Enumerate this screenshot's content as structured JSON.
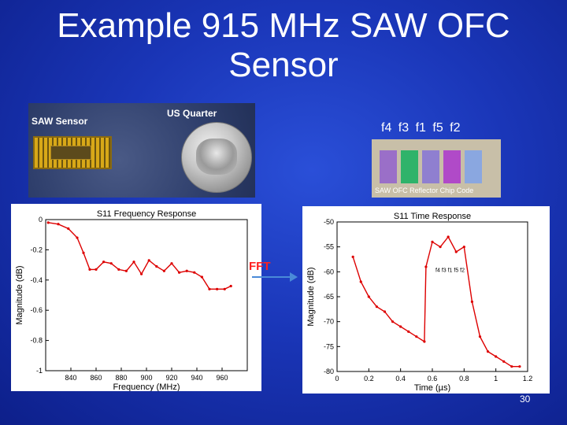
{
  "slide": {
    "title_line1": "Example 915 MHz SAW OFC",
    "title_line2": "Sensor",
    "page_number": "30"
  },
  "photo": {
    "label_sensor": "SAW Sensor",
    "label_quarter": "US Quarter"
  },
  "reflector": {
    "freq_order": "f4 f3 f1 f5 f2",
    "caption": "SAW OFC Reflector Chip Code",
    "bar_colors": [
      "#9a6fc8",
      "#2fb36a",
      "#8f7fd0",
      "#b04ac8",
      "#8aa7e0"
    ]
  },
  "fft_label": "FFT",
  "colors": {
    "background": "#1a36b8",
    "trace": "#dd0000",
    "arrow": "#4a8ad8"
  },
  "chart_data": [
    {
      "type": "line",
      "title": "S11 Frequency Response",
      "xlabel": "Frequency (MHz)",
      "ylabel": "Magnitude (dB)",
      "xlim": [
        820,
        980
      ],
      "ylim": [
        -1,
        0
      ],
      "x_ticks": [
        "840",
        "860",
        "880",
        "900",
        "920",
        "940",
        "960"
      ],
      "y_ticks": [
        "0",
        "-0.2",
        "-0.4",
        "-0.6",
        "-0.8",
        "-1"
      ],
      "series": [
        {
          "x": [
            822,
            830,
            838,
            845,
            850,
            855,
            860,
            866,
            872,
            878,
            884,
            890,
            896,
            902,
            908,
            914,
            920,
            926,
            932,
            938,
            944,
            950,
            956,
            962,
            967
          ],
          "y": [
            -0.02,
            -0.03,
            -0.06,
            -0.12,
            -0.22,
            -0.33,
            -0.33,
            -0.28,
            -0.29,
            -0.33,
            -0.34,
            -0.28,
            -0.36,
            -0.27,
            -0.31,
            -0.34,
            -0.29,
            -0.35,
            -0.34,
            -0.35,
            -0.38,
            -0.46,
            -0.46,
            -0.46,
            -0.44
          ]
        }
      ]
    },
    {
      "type": "line",
      "title": "S11 Time Response",
      "xlabel": "Time (µs)",
      "ylabel": "Magnitude (dB)",
      "xlim": [
        0,
        1.2
      ],
      "ylim": [
        -80,
        -50
      ],
      "x_ticks": [
        "0",
        "0.2",
        "0.4",
        "0.6",
        "0.8",
        "1",
        "1.2"
      ],
      "y_ticks": [
        "-50",
        "-55",
        "-60",
        "-65",
        "-70",
        "-75",
        "-80"
      ],
      "annotation": "f4 f3 f1 f5 f2",
      "series": [
        {
          "x": [
            0.1,
            0.15,
            0.2,
            0.25,
            0.3,
            0.35,
            0.4,
            0.45,
            0.5,
            0.55,
            0.56,
            0.6,
            0.65,
            0.7,
            0.75,
            0.8,
            0.85,
            0.9,
            0.95,
            1.0,
            1.05,
            1.1,
            1.15
          ],
          "y": [
            -57,
            -62,
            -65,
            -67,
            -68,
            -70,
            -71,
            -72,
            -73,
            -74,
            -59,
            -54,
            -55,
            -53,
            -56,
            -55,
            -66,
            -73,
            -76,
            -77,
            -78,
            -79,
            -79
          ]
        }
      ]
    }
  ]
}
